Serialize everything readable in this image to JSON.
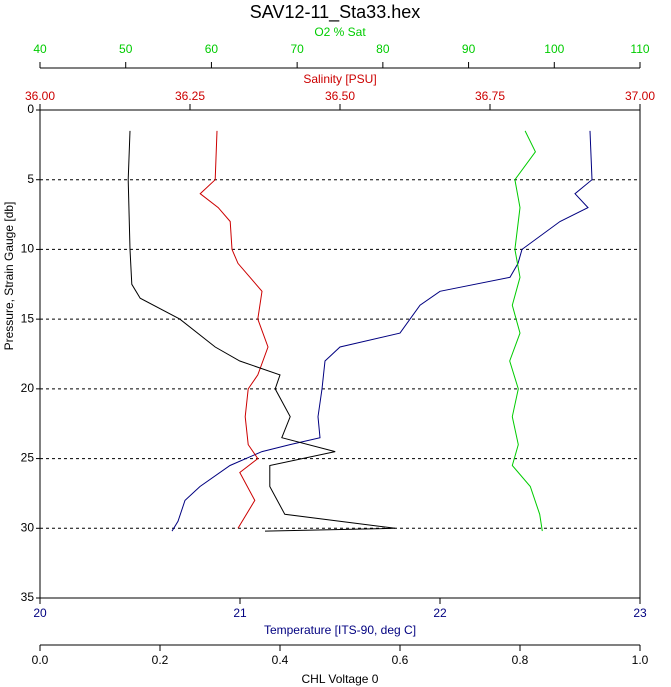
{
  "chart_data": {
    "type": "line",
    "title": "SAV12-11_Sta33.hex",
    "ylabel": "Pressure, Strain Gauge [db]",
    "ylim": [
      0,
      35
    ],
    "yticks": [
      0,
      5,
      10,
      15,
      20,
      25,
      30,
      35
    ],
    "grid": true,
    "axes": [
      {
        "label": "O2 % Sat",
        "color": "#00cc00",
        "xlim": [
          40,
          110
        ],
        "xticks": [
          40,
          50,
          60,
          70,
          80,
          90,
          100,
          110
        ]
      },
      {
        "label": "Salinity [PSU]",
        "color": "#cc0000",
        "xlim": [
          36.0,
          37.0
        ],
        "xticks": [
          {
            "value": 36.0,
            "label": "36.00"
          },
          {
            "value": 36.25,
            "label": "36.25"
          },
          {
            "value": 36.5,
            "label": "36.50"
          },
          {
            "value": 36.75,
            "label": "36.75"
          },
          {
            "value": 37.0,
            "label": "37.00"
          }
        ]
      },
      {
        "label": "Temperature [ITS-90, deg C]",
        "color": "#000080",
        "xlim": [
          20,
          23
        ],
        "xticks": [
          20,
          21,
          22,
          23
        ]
      },
      {
        "label": "CHL Voltage 0",
        "color": "#000000",
        "xlim": [
          0,
          1.0
        ],
        "xticks": [
          {
            "value": 0,
            "label": "0.0"
          },
          {
            "value": 0.2,
            "label": "0.2"
          },
          {
            "value": 0.4,
            "label": "0.4"
          },
          {
            "value": 0.6,
            "label": "0.6"
          },
          {
            "value": 0.8,
            "label": "0.8"
          },
          {
            "value": 1.0,
            "label": "1.0"
          }
        ]
      }
    ],
    "series": [
      {
        "color": "#000080",
        "axis": 2,
        "y": [
          1.5,
          5,
          6,
          7,
          8,
          10,
          11,
          12,
          13,
          14,
          16,
          17,
          18,
          20,
          22,
          23.5,
          24,
          24.5,
          25.5,
          27,
          28,
          29.5,
          30.2
        ],
        "x": [
          22.75,
          22.76,
          22.675,
          22.74,
          22.6,
          22.41,
          22.39,
          22.35,
          22.0,
          21.9,
          21.8,
          21.5,
          21.425,
          21.41,
          21.39,
          21.4,
          21.25,
          21.11,
          20.95,
          20.8,
          20.725,
          20.69,
          20.66
        ]
      },
      {
        "color": "#cc0000",
        "axis": 1,
        "y": [
          1.5,
          5,
          6,
          7,
          8,
          10,
          11,
          12,
          13,
          15,
          17,
          19,
          20,
          22,
          24,
          25,
          26,
          28,
          30
        ],
        "x": [
          36.295,
          36.292,
          36.267,
          36.297,
          36.317,
          36.32,
          36.33,
          36.35,
          36.37,
          36.363,
          36.38,
          36.363,
          36.347,
          36.342,
          36.347,
          36.363,
          36.333,
          36.358,
          36.33
        ]
      },
      {
        "color": "#00cc00",
        "axis": 0,
        "y": [
          1.5,
          3,
          5,
          7,
          10,
          12,
          14,
          16,
          18,
          20,
          22,
          24,
          25.5,
          27,
          29,
          30.2
        ],
        "x": [
          96.6,
          97.8,
          95.4,
          96.0,
          95.4,
          96.0,
          95.1,
          96.0,
          94.8,
          95.8,
          95.1,
          95.8,
          95.1,
          97.2,
          98.3,
          98.6
        ]
      },
      {
        "color": "#000000",
        "axis": 3,
        "y": [
          1.5,
          5,
          10,
          12.5,
          13.5,
          15,
          17,
          18,
          19,
          20,
          22,
          23.5,
          24.5,
          25.5,
          27,
          29,
          30,
          30.2
        ],
        "x": [
          0.15,
          0.147,
          0.15,
          0.153,
          0.167,
          0.233,
          0.292,
          0.333,
          0.4,
          0.392,
          0.417,
          0.403,
          0.492,
          0.383,
          0.383,
          0.408,
          0.592,
          0.375
        ]
      }
    ]
  }
}
